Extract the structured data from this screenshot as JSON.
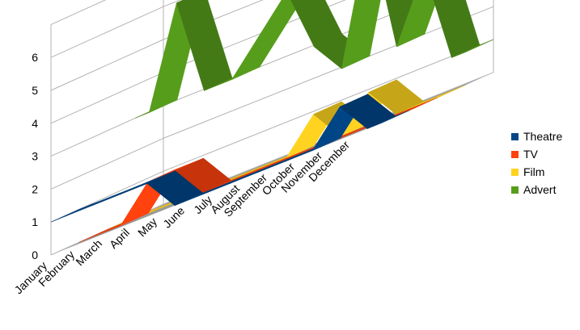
{
  "chart_data": {
    "type": "line",
    "style": "3d-ribbon",
    "categories": [
      "January",
      "February",
      "March",
      "April",
      "May",
      "June",
      "July",
      "August",
      "September",
      "October",
      "November",
      "December"
    ],
    "ylim": [
      0,
      6
    ],
    "yticks": [
      "0",
      "1",
      "2",
      "3",
      "4",
      "5",
      "6"
    ],
    "grid": true,
    "legend_position": "right",
    "series": [
      {
        "name": "Theatre",
        "color": "#004586",
        "values": [
          1,
          1,
          1,
          1,
          0,
          0,
          0,
          0,
          0,
          0,
          1,
          0
        ]
      },
      {
        "name": "TV",
        "color": "#ff420e",
        "values": [
          0,
          0,
          1,
          1,
          0,
          0,
          0,
          0,
          0,
          0,
          0,
          0
        ]
      },
      {
        "name": "Film",
        "color": "#ffd320",
        "values": [
          0,
          0,
          0,
          0,
          0,
          0,
          0,
          1,
          0,
          1,
          0,
          0
        ]
      },
      {
        "name": "Advert",
        "color": "#579d1c",
        "values": [
          3,
          6,
          3,
          3,
          4,
          5,
          3,
          2,
          6,
          2,
          4,
          1
        ]
      }
    ]
  }
}
